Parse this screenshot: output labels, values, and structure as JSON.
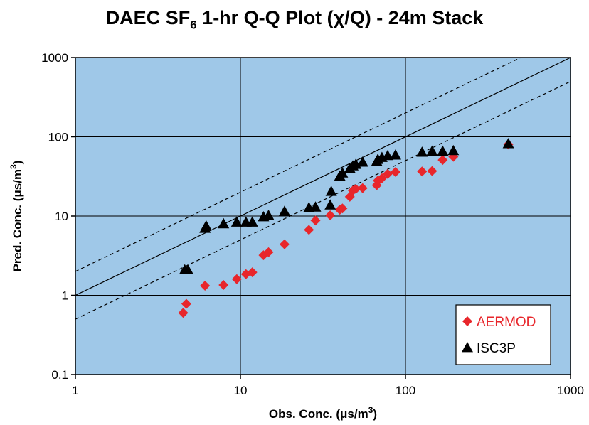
{
  "title": {
    "prefix": "DAEC SF",
    "subscript": "6",
    "suffix": " 1-hr Q-Q Plot (χ/Q) - 24m Stack"
  },
  "colors": {
    "plot_background": "#9fc8e8",
    "aermod": "#e8262b",
    "isc3p": "#000000",
    "grid": "#000000"
  },
  "chart_data": {
    "type": "scatter",
    "title": "DAEC SF6 1-hr Q-Q Plot (χ/Q) - 24m Stack",
    "xlabel": "Obs. Conc. (μs/m3)",
    "ylabel": "Pred. Conc. (μs/m3)",
    "xlabel_parts": {
      "main": "Obs. Conc. (μs/m",
      "sup": "3",
      "end": ")"
    },
    "ylabel_parts": {
      "main": "Pred. Conc. (μs/m",
      "sup": "3",
      "end": ")"
    },
    "x_scale": "log",
    "y_scale": "log",
    "xlim": [
      1,
      1000
    ],
    "ylim": [
      0.1,
      1000
    ],
    "x_ticks": [
      "1",
      "10",
      "100",
      "1000"
    ],
    "y_ticks": [
      "0.1",
      "1",
      "10",
      "100",
      "1000"
    ],
    "grid": true,
    "legend_position": "bottom-right",
    "reference_lines": [
      {
        "style": "solid",
        "factor": 1
      },
      {
        "style": "dashed",
        "factor": 2
      },
      {
        "style": "dashed",
        "factor": 0.5
      }
    ],
    "series": [
      {
        "name": "AERMOD",
        "marker": "diamond",
        "points": [
          [
            4.5,
            0.6
          ],
          [
            4.7,
            0.78
          ],
          [
            6.1,
            1.32
          ],
          [
            7.9,
            1.35
          ],
          [
            9.5,
            1.6
          ],
          [
            10.8,
            1.85
          ],
          [
            11.8,
            1.95
          ],
          [
            13.8,
            3.2
          ],
          [
            14.8,
            3.5
          ],
          [
            18.5,
            4.4
          ],
          [
            26,
            6.7
          ],
          [
            28.5,
            8.8
          ],
          [
            35,
            10.2
          ],
          [
            40,
            12
          ],
          [
            41.5,
            12.5
          ],
          [
            46,
            17.5
          ],
          [
            48,
            21
          ],
          [
            50,
            22
          ],
          [
            55,
            22.5
          ],
          [
            67,
            24.5
          ],
          [
            68,
            28
          ],
          [
            72,
            30
          ],
          [
            78,
            34
          ],
          [
            87,
            36
          ],
          [
            126,
            36.5
          ],
          [
            145,
            37
          ],
          [
            168,
            51
          ],
          [
            195,
            56
          ],
          [
            420,
            80
          ]
        ]
      },
      {
        "name": "ISC3P",
        "marker": "triangle",
        "points": [
          [
            4.6,
            2.1
          ],
          [
            4.8,
            2.1
          ],
          [
            6.1,
            7.0
          ],
          [
            6.2,
            7.5
          ],
          [
            7.9,
            8.0
          ],
          [
            9.5,
            8.4
          ],
          [
            10.8,
            8.4
          ],
          [
            11.8,
            8.4
          ],
          [
            13.8,
            9.8
          ],
          [
            14.8,
            10.2
          ],
          [
            18.5,
            11.5
          ],
          [
            26,
            12.8
          ],
          [
            28.5,
            13
          ],
          [
            35,
            13.8
          ],
          [
            35.5,
            20.5
          ],
          [
            40,
            32
          ],
          [
            41.5,
            35
          ],
          [
            46,
            40
          ],
          [
            48,
            43
          ],
          [
            50,
            45
          ],
          [
            55,
            48
          ],
          [
            67,
            49
          ],
          [
            68,
            52
          ],
          [
            72,
            55
          ],
          [
            78,
            58
          ],
          [
            87,
            59
          ],
          [
            126,
            64
          ],
          [
            145,
            66
          ],
          [
            168,
            66
          ],
          [
            195,
            67
          ],
          [
            420,
            82
          ]
        ]
      }
    ]
  }
}
